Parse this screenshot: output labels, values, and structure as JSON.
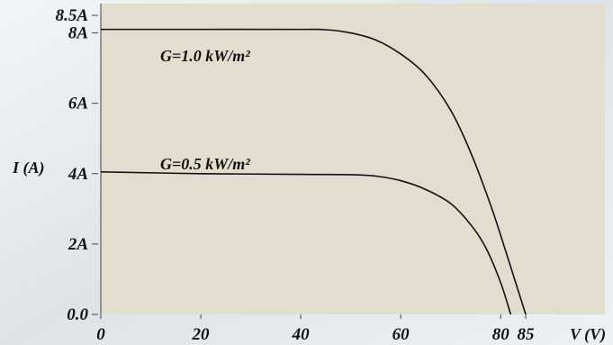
{
  "chart_data": {
    "type": "line",
    "xlabel": "V (V)",
    "ylabel": "I (A)",
    "xlim": [
      0,
      85
    ],
    "ylim": [
      0,
      8.5
    ],
    "x_ticks": [
      0,
      20,
      40,
      60,
      80,
      85
    ],
    "x_tick_labels": [
      "0",
      "20",
      "40",
      "60",
      "80",
      "85"
    ],
    "y_ticks": [
      0,
      2,
      4,
      6,
      8,
      8.5
    ],
    "y_tick_labels": [
      "0.0",
      "2A",
      "4A",
      "6A",
      "8A",
      "8.5A"
    ],
    "series": [
      {
        "name": "G=1.0 kW/m²",
        "x": [
          0,
          20,
          40,
          45,
          50,
          55,
          60,
          65,
          70,
          74,
          78,
          81,
          83,
          85
        ],
        "y": [
          8.1,
          8.1,
          8.1,
          8.09,
          8.0,
          7.8,
          7.4,
          6.8,
          5.8,
          4.6,
          3.1,
          1.8,
          0.9,
          0.0
        ]
      },
      {
        "name": "G=0.5 kW/m²",
        "x": [
          0,
          20,
          40,
          50,
          55,
          60,
          65,
          70,
          74,
          77,
          80,
          82
        ],
        "y": [
          4.05,
          4.0,
          3.98,
          3.97,
          3.93,
          3.8,
          3.55,
          3.15,
          2.55,
          1.9,
          0.9,
          0.0
        ]
      }
    ],
    "grid": false,
    "legend": "none",
    "colors": {
      "plot_bg": "#e3ddcf",
      "line": "#111111",
      "axis": "#444444"
    }
  }
}
